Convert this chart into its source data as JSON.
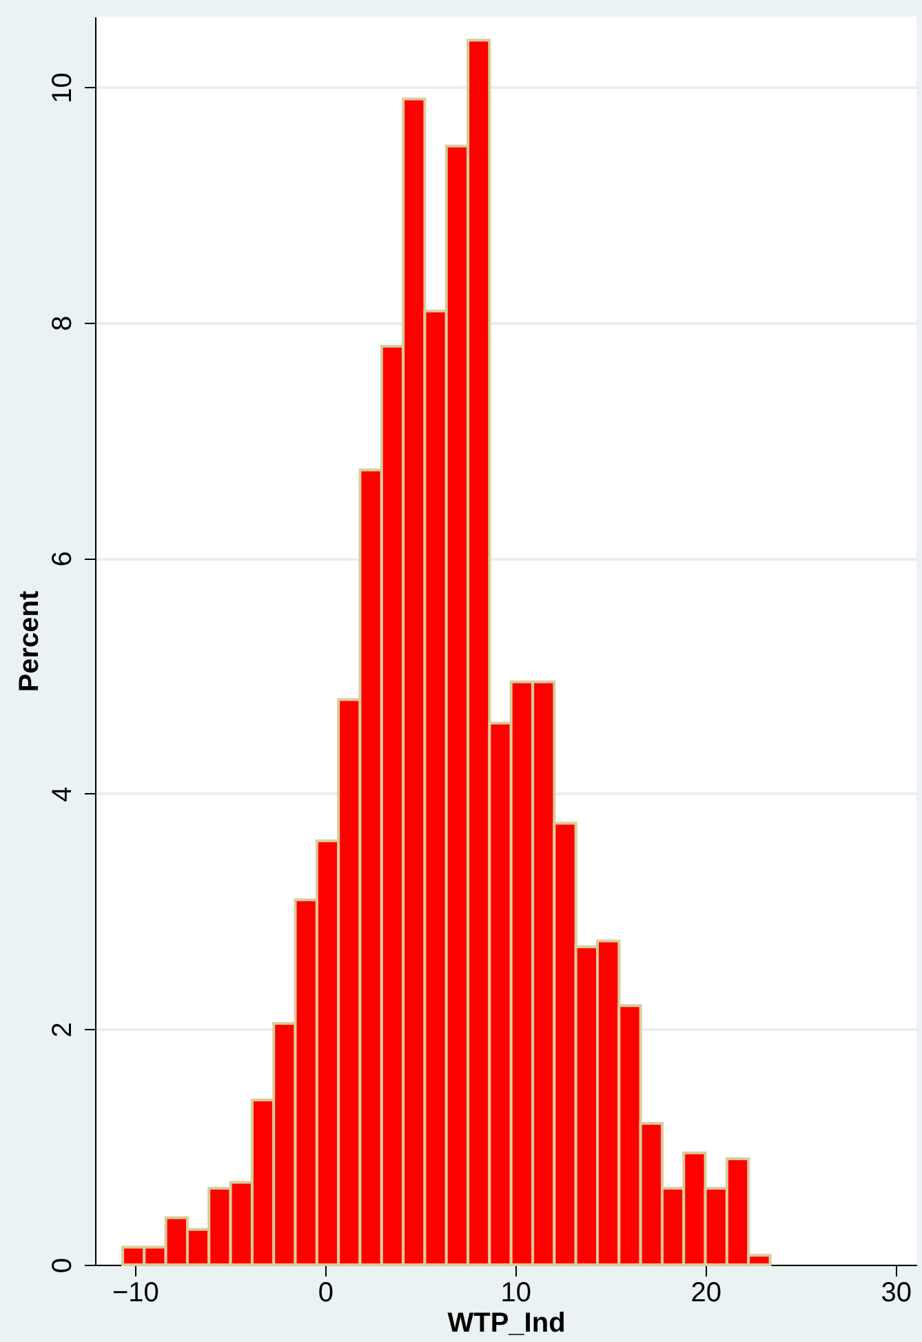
{
  "chart_data": {
    "type": "histogram",
    "xlabel": "WTP_Ind",
    "ylabel": "Percent",
    "color": "#ff0000",
    "bins": [
      -10.65,
      -9.515,
      -8.38,
      -7.245,
      -6.11,
      -4.975,
      -3.84,
      -2.705,
      -1.57,
      -0.435,
      0.7,
      1.835,
      2.97,
      4.105,
      5.24,
      6.375,
      7.51,
      8.645,
      9.78,
      10.915,
      12.05,
      13.185,
      14.32,
      15.455,
      16.59,
      17.725,
      18.86,
      19.995,
      21.13,
      22.265,
      23.4
    ],
    "values": [
      0.15,
      0.15,
      0.4,
      0.3,
      0.65,
      0.7,
      1.4,
      2.05,
      3.1,
      3.6,
      4.8,
      6.75,
      7.8,
      9.9,
      8.1,
      9.5,
      10.4,
      4.6,
      4.95,
      4.95,
      3.75,
      2.7,
      2.75,
      2.2,
      1.2,
      0.65,
      0.95,
      0.65,
      0.9,
      0.08
    ],
    "xlim": [
      -12.1,
      31.1
    ],
    "ylim": [
      0,
      10.6
    ],
    "xticks": [
      -10,
      0,
      10,
      20,
      30
    ],
    "yticks": [
      0,
      2,
      4,
      6,
      8,
      10
    ],
    "grid": "y"
  }
}
